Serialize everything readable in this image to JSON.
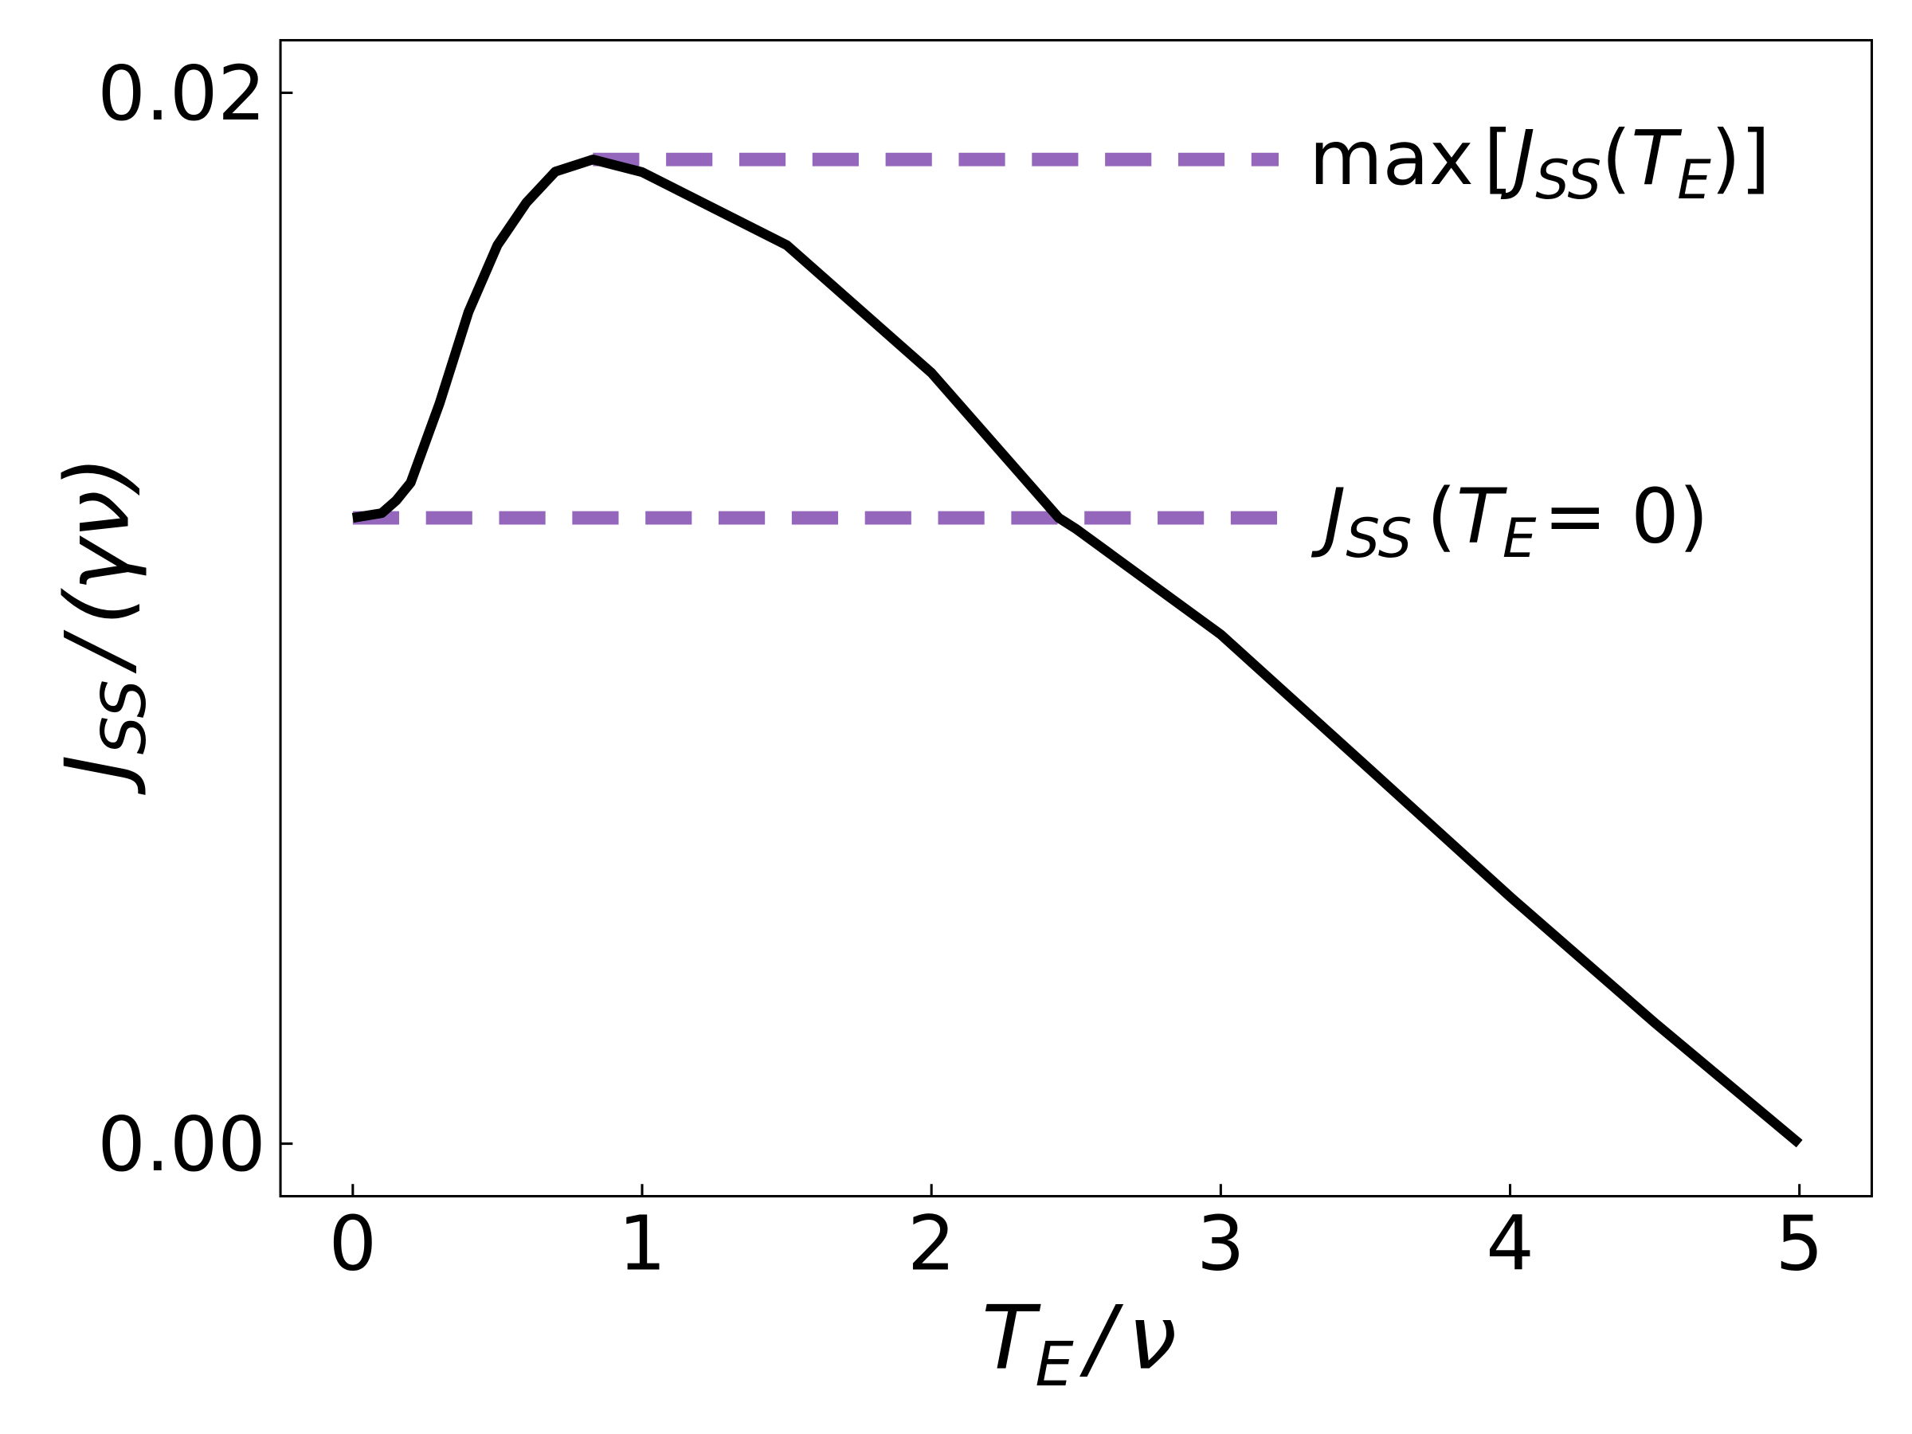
{
  "chart_data": {
    "type": "line",
    "xlabel_parts": [
      "T",
      "E",
      "/",
      "ν"
    ],
    "ylabel_parts": [
      "J",
      "SS",
      "/",
      "(γν)"
    ],
    "series": [
      {
        "color": "#000000",
        "x": [
          0,
          0.1,
          0.15,
          0.2,
          0.3,
          0.4,
          0.5,
          0.6,
          0.7,
          0.83,
          1,
          1.5,
          2,
          2.44,
          2.5,
          3,
          3.5,
          4,
          4.5,
          5
        ],
        "values": [
          0.01191,
          0.012,
          0.01224,
          0.01258,
          0.01409,
          0.01583,
          0.0171,
          0.01791,
          0.0185,
          0.01873,
          0.01849,
          0.0171,
          0.01467,
          0.01191,
          0.0117,
          0.00969,
          0.0072,
          0.0047,
          0.0023,
          0.0
        ]
      }
    ],
    "hlines": [
      {
        "y": 0.01873,
        "xmin": 0.83,
        "xmax": 3.2,
        "color": "#9467bd",
        "label_parts": [
          "max",
          "[",
          "J",
          "SS",
          "(",
          "T",
          "E",
          ")]"
        ]
      },
      {
        "y": 0.01191,
        "xmin": 0,
        "xmax": 3.25,
        "color": "#9467bd",
        "label_parts": [
          "J",
          "SS",
          "(",
          "T",
          "E",
          "= 0)"
        ]
      }
    ],
    "xlim": [
      -0.25,
      5.25
    ],
    "xticks": [
      0,
      1,
      2,
      3,
      4,
      5
    ],
    "ylim": [
      -0.001,
      0.021
    ],
    "yticks": [
      {
        "value": 0,
        "label": "0.00"
      },
      {
        "value": 0.02,
        "label": "0.02"
      }
    ]
  }
}
